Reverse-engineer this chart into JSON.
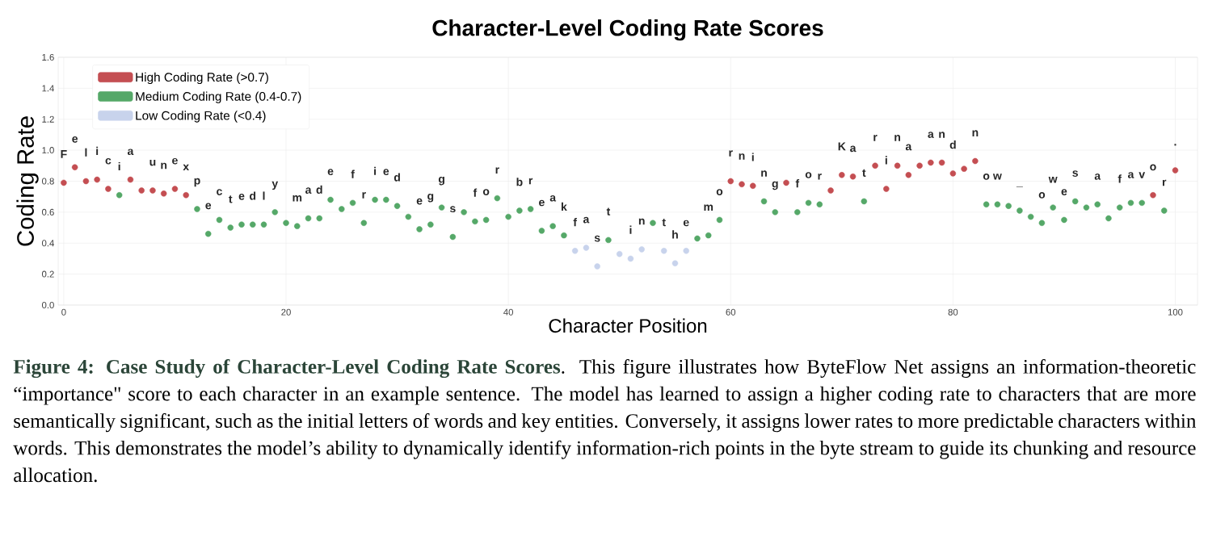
{
  "chart_data": {
    "type": "scatter",
    "title": "Character-Level Coding Rate Scores",
    "xlabel": "Character Position",
    "ylabel": "Coding Rate",
    "xlim": [
      -0.5,
      102
    ],
    "xticks": [
      0,
      20,
      40,
      60,
      80,
      100
    ],
    "ylim": [
      0,
      1.6
    ],
    "yticks": [
      {
        "value": 0,
        "label": "0.0"
      },
      0.2,
      0.4,
      0.6,
      0.8,
      {
        "value": 1,
        "label": "1.0"
      },
      1.2,
      1.4,
      1.6
    ],
    "grid": true,
    "legend": "top left",
    "marker": "circle",
    "series": [
      {
        "name": "High Coding Rate (>0.7)",
        "color": "#c44e52",
        "x": [
          0,
          1,
          2,
          3,
          4,
          6,
          7,
          8,
          9,
          10,
          11,
          60,
          61,
          62,
          65,
          69,
          70,
          71,
          73,
          74,
          75,
          76,
          77,
          78,
          79,
          80,
          81,
          82,
          98,
          100
        ],
        "values": [
          0.79,
          0.89,
          0.8,
          0.81,
          0.75,
          0.81,
          0.74,
          0.74,
          0.72,
          0.75,
          0.71,
          0.8,
          0.78,
          0.77,
          0.79,
          0.74,
          0.84,
          0.83,
          0.9,
          0.75,
          0.9,
          0.84,
          0.9,
          0.92,
          0.92,
          0.85,
          0.88,
          0.93,
          0.71,
          0.87
        ]
      },
      {
        "name": "Medium Coding Rate (0.4-0.7)",
        "color": "#55a868",
        "x": [
          5,
          12,
          13,
          14,
          15,
          16,
          17,
          18,
          19,
          20,
          21,
          22,
          23,
          24,
          25,
          26,
          27,
          28,
          29,
          30,
          31,
          32,
          33,
          34,
          35,
          36,
          37,
          38,
          39,
          40,
          41,
          42,
          43,
          44,
          45,
          49,
          53,
          57,
          58,
          59,
          63,
          64,
          66,
          67,
          68,
          72,
          83,
          84,
          85,
          86,
          87,
          88,
          89,
          90,
          91,
          92,
          93,
          94,
          95,
          96,
          97,
          99
        ],
        "values": [
          0.71,
          0.62,
          0.46,
          0.55,
          0.5,
          0.52,
          0.52,
          0.52,
          0.6,
          0.53,
          0.51,
          0.56,
          0.56,
          0.68,
          0.62,
          0.66,
          0.53,
          0.68,
          0.68,
          0.64,
          0.57,
          0.49,
          0.52,
          0.63,
          0.44,
          0.6,
          0.54,
          0.55,
          0.69,
          0.57,
          0.61,
          0.62,
          0.48,
          0.51,
          0.45,
          0.42,
          0.53,
          0.43,
          0.45,
          0.55,
          0.67,
          0.6,
          0.6,
          0.66,
          0.65,
          0.67,
          0.65,
          0.65,
          0.64,
          0.61,
          0.57,
          0.53,
          0.63,
          0.55,
          0.67,
          0.63,
          0.65,
          0.56,
          0.63,
          0.66,
          0.66,
          0.61
        ]
      },
      {
        "name": "Low Coding Rate (<0.4)",
        "color": "#c8d3ec",
        "x": [
          46,
          47,
          48,
          50,
          51,
          52,
          54,
          55,
          56
        ],
        "values": [
          0.35,
          0.37,
          0.25,
          0.33,
          0.3,
          0.36,
          0.35,
          0.27,
          0.35
        ]
      }
    ],
    "annotations": [
      "Figure 4: Case Study of Character-Level Coding Rate Scores",
      ". This figure illustrates how ByteFlow Net assigns an information-theoretic “importance\" score to each character in an example sentence. The model has learned to assign a higher coding rate to characters that are more semantically significant, such as the initial letters of words and key entities. Conversely, it assigns lower rates to more predictable characters within words. This demonstrates the model’s ability to dynamically identify information-rich points in the byte stream to guide its chunking and resource allocation.",
      {
        "text": "F",
        "x": 0,
        "y": 0.79
      },
      {
        "text": "e",
        "x": 1,
        "y": 0.89
      },
      {
        "text": "l",
        "x": 2,
        "y": 0.8
      },
      {
        "text": "i",
        "x": 3,
        "y": 0.81
      },
      {
        "text": "c",
        "x": 4,
        "y": 0.75
      },
      {
        "text": "i",
        "x": 5,
        "y": 0.71
      },
      {
        "text": "a",
        "x": 6,
        "y": 0.81
      },
      {
        "text": "u",
        "x": 8,
        "y": 0.74
      },
      {
        "text": "n",
        "x": 9,
        "y": 0.72
      },
      {
        "text": "e",
        "x": 10,
        "y": 0.75
      },
      {
        "text": "x",
        "x": 11,
        "y": 0.71
      },
      {
        "text": "p",
        "x": 12,
        "y": 0.62
      },
      {
        "text": "e",
        "x": 13,
        "y": 0.46
      },
      {
        "text": "c",
        "x": 14,
        "y": 0.55
      },
      {
        "text": "t",
        "x": 15,
        "y": 0.5
      },
      {
        "text": "e",
        "x": 16,
        "y": 0.52
      },
      {
        "text": "d",
        "x": 17,
        "y": 0.52
      },
      {
        "text": "l",
        "x": 18,
        "y": 0.52
      },
      {
        "text": "y",
        "x": 19,
        "y": 0.6
      },
      {
        "text": "m",
        "x": 21,
        "y": 0.51
      },
      {
        "text": "a",
        "x": 22,
        "y": 0.56
      },
      {
        "text": "d",
        "x": 23,
        "y": 0.56
      },
      {
        "text": "e",
        "x": 24,
        "y": 0.68
      },
      {
        "text": "f",
        "x": 26,
        "y": 0.66
      },
      {
        "text": "r",
        "x": 27,
        "y": 0.53
      },
      {
        "text": "i",
        "x": 28,
        "y": 0.68
      },
      {
        "text": "e",
        "x": 29,
        "y": 0.68
      },
      {
        "text": "d",
        "x": 30,
        "y": 0.64
      },
      {
        "text": "e",
        "x": 32,
        "y": 0.49
      },
      {
        "text": "g",
        "x": 33,
        "y": 0.52
      },
      {
        "text": "g",
        "x": 34,
        "y": 0.63
      },
      {
        "text": "s",
        "x": 35,
        "y": 0.44
      },
      {
        "text": "f",
        "x": 37,
        "y": 0.54
      },
      {
        "text": "o",
        "x": 38,
        "y": 0.55
      },
      {
        "text": "r",
        "x": 39,
        "y": 0.69
      },
      {
        "text": "b",
        "x": 41,
        "y": 0.61
      },
      {
        "text": "r",
        "x": 42,
        "y": 0.62
      },
      {
        "text": "e",
        "x": 43,
        "y": 0.48
      },
      {
        "text": "a",
        "x": 44,
        "y": 0.51
      },
      {
        "text": "k",
        "x": 45,
        "y": 0.45
      },
      {
        "text": "f",
        "x": 46,
        "y": 0.35
      },
      {
        "text": "a",
        "x": 47,
        "y": 0.37
      },
      {
        "text": "s",
        "x": 48,
        "y": 0.25
      },
      {
        "text": "t",
        "x": 49,
        "y": 0.42
      },
      {
        "text": "i",
        "x": 51,
        "y": 0.3
      },
      {
        "text": "n",
        "x": 52,
        "y": 0.36
      },
      {
        "text": "t",
        "x": 54,
        "y": 0.35
      },
      {
        "text": "h",
        "x": 55,
        "y": 0.27
      },
      {
        "text": "e",
        "x": 56,
        "y": 0.35
      },
      {
        "text": "m",
        "x": 58,
        "y": 0.45
      },
      {
        "text": "o",
        "x": 59,
        "y": 0.55
      },
      {
        "text": "r",
        "x": 60,
        "y": 0.8
      },
      {
        "text": "n",
        "x": 61,
        "y": 0.78
      },
      {
        "text": "i",
        "x": 62,
        "y": 0.77
      },
      {
        "text": "n",
        "x": 63,
        "y": 0.67
      },
      {
        "text": "g",
        "x": 64,
        "y": 0.6
      },
      {
        "text": "f",
        "x": 66,
        "y": 0.6
      },
      {
        "text": "o",
        "x": 67,
        "y": 0.66
      },
      {
        "text": "r",
        "x": 68,
        "y": 0.65
      },
      {
        "text": "K",
        "x": 70,
        "y": 0.84
      },
      {
        "text": "a",
        "x": 71,
        "y": 0.83
      },
      {
        "text": "t",
        "x": 72,
        "y": 0.67
      },
      {
        "text": "r",
        "x": 73,
        "y": 0.9
      },
      {
        "text": "i",
        "x": 74,
        "y": 0.75
      },
      {
        "text": "n",
        "x": 75,
        "y": 0.9
      },
      {
        "text": "a",
        "x": 76,
        "y": 0.84
      },
      {
        "text": "a",
        "x": 78,
        "y": 0.92
      },
      {
        "text": "n",
        "x": 79,
        "y": 0.92
      },
      {
        "text": "d",
        "x": 80,
        "y": 0.85
      },
      {
        "text": "n",
        "x": 82,
        "y": 0.93
      },
      {
        "text": "o",
        "x": 83,
        "y": 0.65
      },
      {
        "text": "w",
        "x": 84,
        "y": 0.65
      },
      {
        "text": "_",
        "x": 86,
        "y": 0.61
      },
      {
        "text": "o",
        "x": 88,
        "y": 0.53
      },
      {
        "text": "w",
        "x": 89,
        "y": 0.63
      },
      {
        "text": "e",
        "x": 90,
        "y": 0.55
      },
      {
        "text": "s",
        "x": 91,
        "y": 0.67
      },
      {
        "text": "a",
        "x": 93,
        "y": 0.65
      },
      {
        "text": "f",
        "x": 95,
        "y": 0.63
      },
      {
        "text": "a",
        "x": 96,
        "y": 0.66
      },
      {
        "text": "v",
        "x": 97,
        "y": 0.66
      },
      {
        "text": "o",
        "x": 98,
        "y": 0.71
      },
      {
        "text": "r",
        "x": 99,
        "y": 0.61
      },
      {
        "text": ".",
        "x": 100,
        "y": 0.87
      }
    ]
  }
}
